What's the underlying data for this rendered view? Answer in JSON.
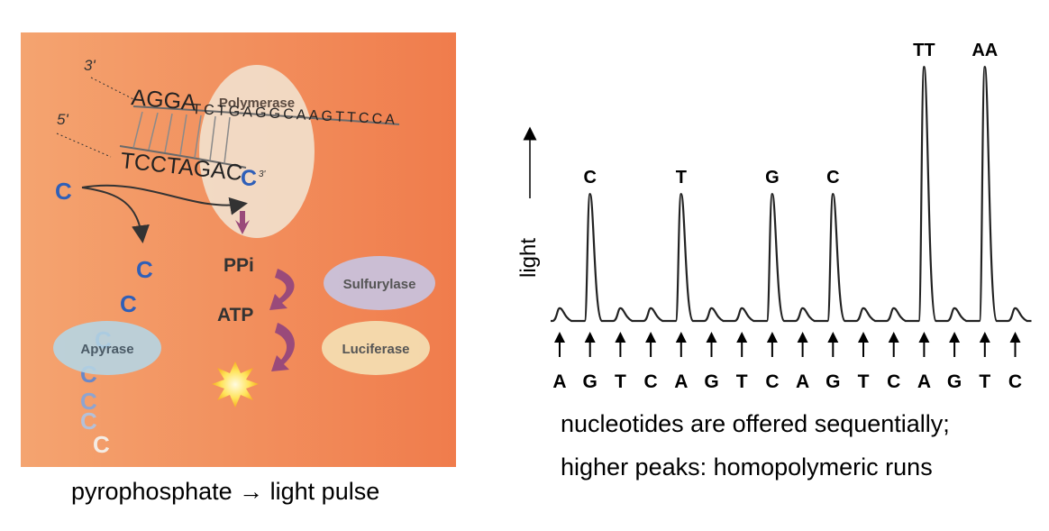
{
  "left_diagram": {
    "strand_top_5to3_label": "3'",
    "strand_bottom_label": "5'",
    "template_big": "AGGA",
    "template_small": "TCTGAGGCAAGTTCCA",
    "template_end": "5'",
    "primer_seq": "TCCTAGAC",
    "primer_end": "3'",
    "incoming_nucleotide": "C",
    "polymerase_label": "Polymerase",
    "ppi_label": "PPi",
    "atp_label": "ATP",
    "sulfurylase_label": "Sulfurylase",
    "luciferase_label": "Luciferase",
    "apyrase_label": "Apyrase",
    "falling_c_letters": [
      "C",
      "C",
      "C",
      "C",
      "C",
      "C",
      "C"
    ],
    "colors": {
      "background_left": "#f4a06a",
      "background_right": "#f07a4a",
      "nucleotide_blue": "#2f5fb8",
      "polymerase": "#f1ddc8",
      "enzyme_sulfurylase": "#c8c3e0",
      "enzyme_luciferase": "#f3dcb0",
      "enzyme_apyrase": "#b6d5e3",
      "arrow_purple": "#9a4a7a"
    }
  },
  "chart": {
    "y_axis_label": "light",
    "flow_order": [
      "A",
      "G",
      "T",
      "C",
      "A",
      "G",
      "T",
      "C",
      "A",
      "G",
      "T",
      "C",
      "A",
      "G",
      "T",
      "C"
    ],
    "peak_labels": [
      {
        "flow_index": 1,
        "label": "C"
      },
      {
        "flow_index": 4,
        "label": "T"
      },
      {
        "flow_index": 7,
        "label": "G"
      },
      {
        "flow_index": 9,
        "label": "C"
      },
      {
        "flow_index": 12,
        "label": "TT"
      },
      {
        "flow_index": 14,
        "label": "AA"
      }
    ]
  },
  "chart_data": {
    "type": "line",
    "title": "",
    "xlabel": "",
    "ylabel": "light",
    "categories": [
      "A",
      "G",
      "T",
      "C",
      "A",
      "G",
      "T",
      "C",
      "A",
      "G",
      "T",
      "C",
      "A",
      "G",
      "T",
      "C"
    ],
    "series": [
      {
        "values": [
          0.1,
          1.0,
          0.1,
          0.1,
          1.0,
          0.1,
          0.1,
          1.0,
          0.1,
          1.0,
          0.1,
          0.1,
          2.0,
          0.1,
          2.0,
          0.1
        ]
      }
    ],
    "ylim": [
      0,
      2.1
    ],
    "grid": false
  },
  "captions": {
    "left": "pyrophosphate → light pulse",
    "right_line1": "nucleotides are offered sequentially;",
    "right_line2": "higher peaks: homopolymeric runs"
  }
}
